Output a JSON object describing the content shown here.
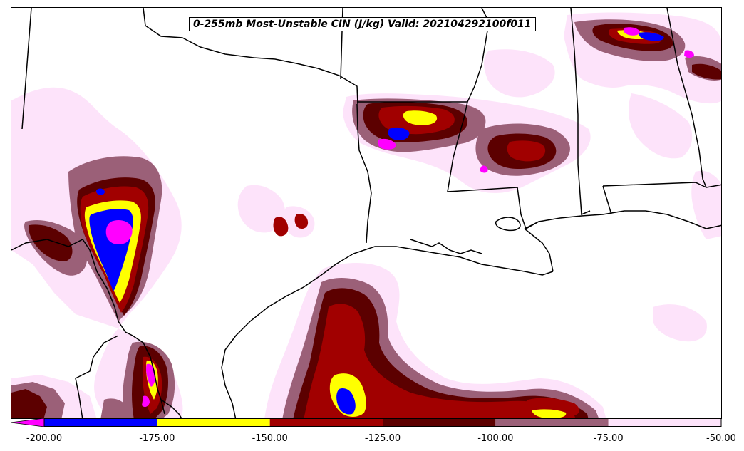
{
  "title": "0-255mb Most-Unstable CIN (J/kg) Valid: 202104292100f011",
  "colorbar": {
    "bins": [
      {
        "min": -200,
        "max": -175,
        "color": "#0000ff"
      },
      {
        "min": -175,
        "max": -150,
        "color": "#ffff00"
      },
      {
        "min": -150,
        "max": -125,
        "color": "#a10000"
      },
      {
        "min": -125,
        "max": -100,
        "color": "#5c0000"
      },
      {
        "min": -100,
        "max": -75,
        "color": "#9b6078"
      },
      {
        "min": -75,
        "max": -50,
        "color": "#fde3fa"
      }
    ],
    "extend_below_color": "#ff00ff",
    "ticks": [
      "-200.00",
      "-175.00",
      "-150.00",
      "-125.00",
      "-100.00",
      "-75.00",
      "-50.00"
    ]
  },
  "colors": {
    "lightest": "#fde3fa",
    "mauve": "#9b6078",
    "dark_red": "#5c0000",
    "red": "#a10000",
    "yellow": "#ffff00",
    "blue": "#0000ff",
    "magenta": "#ff00ff",
    "borders": "#000000"
  }
}
